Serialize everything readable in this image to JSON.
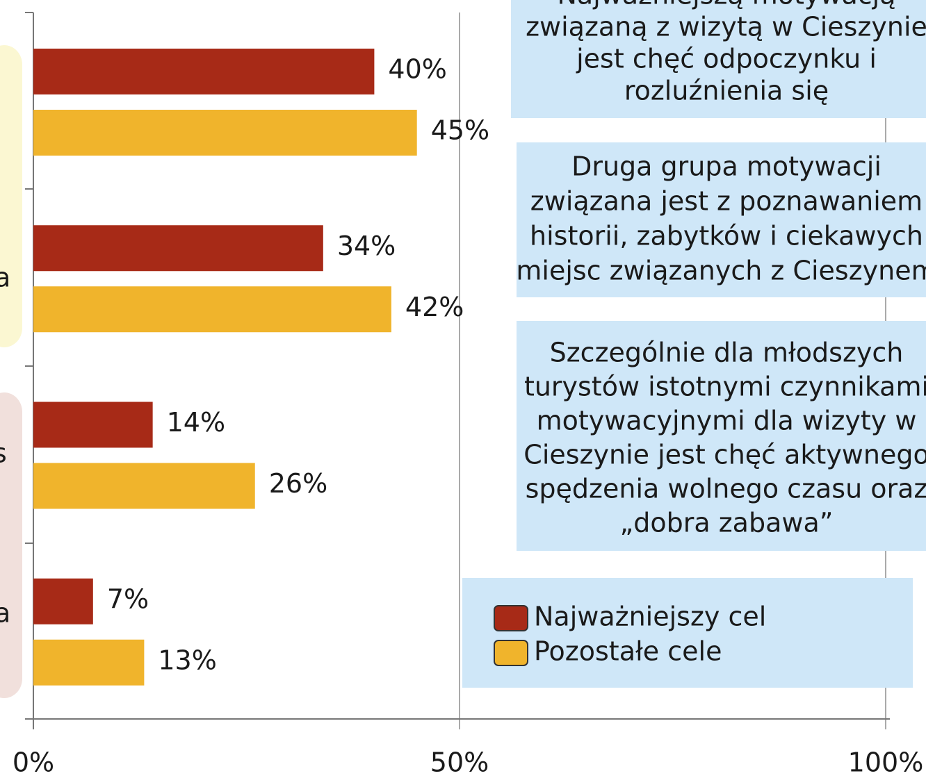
{
  "chart_data": {
    "type": "bar",
    "orientation": "horizontal",
    "series": [
      {
        "name": "Najważniejszy cel",
        "color": "#a72a17",
        "values": [
          40,
          34,
          14,
          7
        ],
        "value_labels": [
          "40%",
          "34%",
          "14%",
          "7%"
        ]
      },
      {
        "name": "Pozostałe cele",
        "color": "#f0b42c",
        "values": [
          45,
          42,
          26,
          13
        ],
        "value_labels": [
          "45%",
          "42%",
          "26%",
          "13%"
        ]
      }
    ],
    "xlim": [
      0,
      100
    ],
    "xticks": [
      {
        "value": 0,
        "label": "0%"
      },
      {
        "value": 50,
        "label": "50%"
      },
      {
        "value": 100,
        "label": "100%"
      }
    ],
    "grid": true,
    "annotations": [
      [
        "Najważniejszą motywacją",
        "związaną z wizytą w Cieszynie",
        "jest chęć odpoczynku i",
        "rozluźnienia się"
      ],
      [
        "Druga grupa motywacji",
        "związana jest z poznawaniem",
        "historii, zabytków i ciekawych",
        "miejsc związanych z Cieszynem"
      ],
      [
        "Szczególnie dla młodszych",
        "turystów istotnymi czynnikami",
        "motywacyjnymi dla wizyty w",
        "Cieszynie jest chęć aktywnego",
        "spędzenia wolnego czasu oraz",
        "„dobra zabawa”"
      ]
    ]
  }
}
